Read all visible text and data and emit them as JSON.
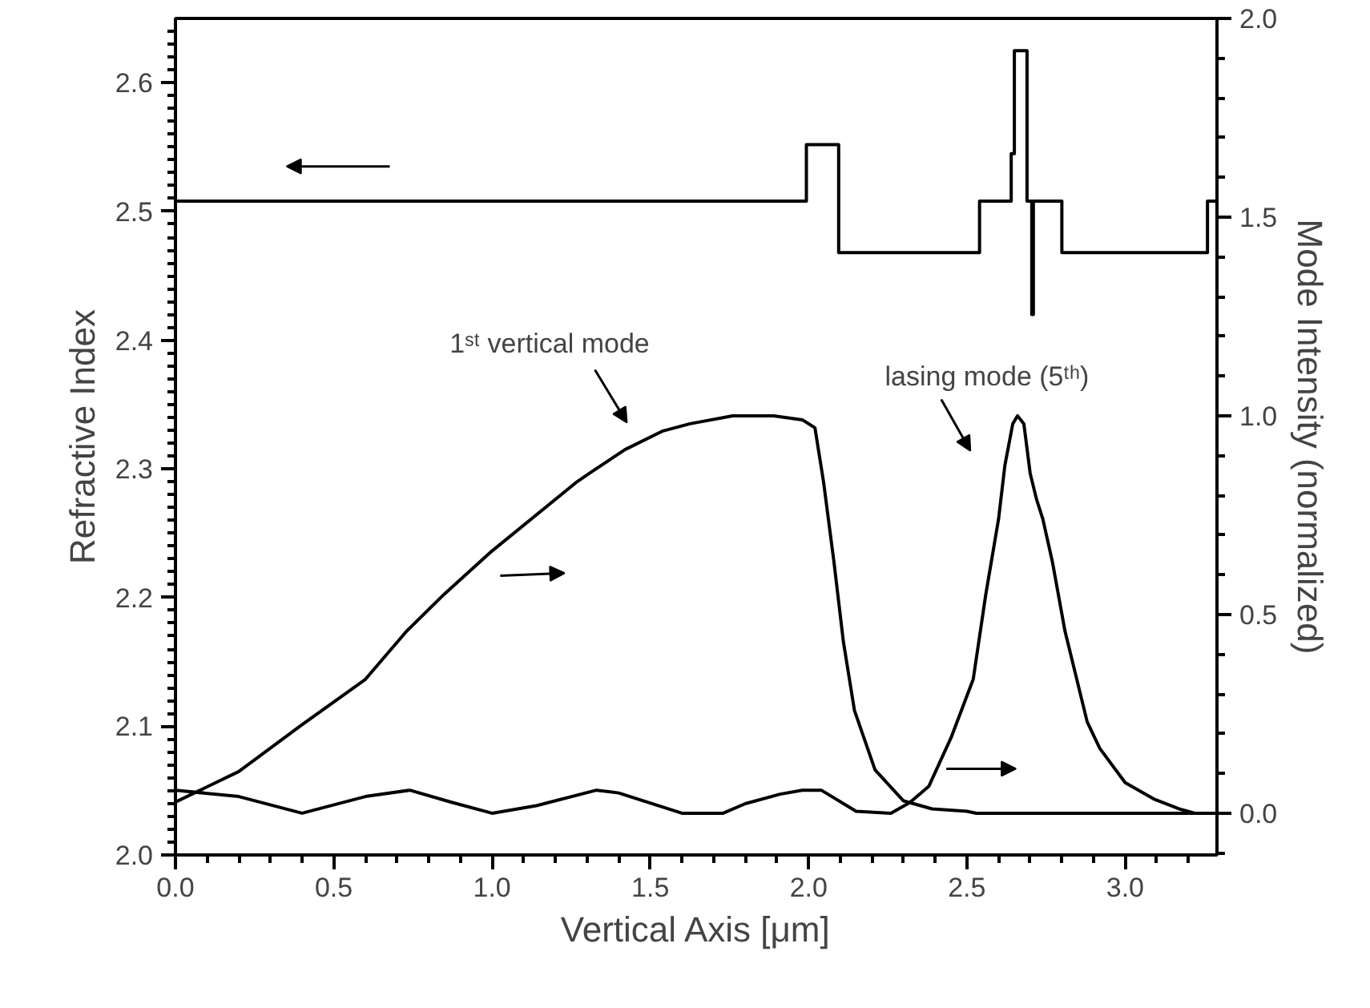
{
  "chart_data": {
    "type": "line",
    "xlabel": "Vertical Axis [μm]",
    "ylabel": "Refractive Index",
    "y2label": "Mode Intensity (normalized)",
    "xlim": [
      0,
      3.29
    ],
    "xticks": [
      {
        "value": 0,
        "label": "0.0"
      },
      0.5,
      {
        "value": 1,
        "label": "1.0"
      },
      1.5,
      {
        "value": 2,
        "label": "2.0"
      },
      2.5,
      {
        "value": 3,
        "label": "3.0"
      }
    ],
    "ylim": [
      2.0,
      2.65
    ],
    "yticks": [
      {
        "value": 2.0,
        "label": "2.0"
      },
      2.1,
      2.2,
      2.3,
      2.4,
      2.5,
      2.6
    ],
    "y2lim": [
      -0.105,
      2.0
    ],
    "y2ticks": [
      {
        "value": 0,
        "label": "0.0"
      },
      0.5,
      {
        "value": 1,
        "label": "1.0"
      },
      1.5,
      {
        "value": 2,
        "label": "2.0"
      }
    ],
    "grid": false,
    "marker": "none",
    "line_style": "solid",
    "series": [
      {
        "color": "#000000",
        "x": [
          0,
          1.993,
          1.993,
          2.095,
          2.095,
          2.54,
          2.54,
          2.64,
          2.64,
          2.65,
          2.65,
          2.69,
          2.69,
          2.705,
          2.705,
          2.71,
          2.71,
          2.8,
          2.8,
          3.26,
          3.26,
          3.29
        ],
        "values": [
          2.508,
          2.508,
          2.552,
          2.552,
          2.468,
          2.468,
          2.508,
          2.508,
          2.545,
          2.545,
          2.625,
          2.625,
          2.508,
          2.508,
          2.42,
          2.42,
          2.508,
          2.508,
          2.468,
          2.468,
          2.508,
          2.508
        ]
      },
      {
        "color": "#000000",
        "axis": "y2",
        "x": [
          0,
          0.2,
          0.4,
          0.6,
          0.73,
          0.85,
          1.0,
          1.27,
          1.32,
          1.42,
          1.54,
          1.625,
          1.76,
          1.89,
          1.98,
          2.02,
          2.047,
          2.08,
          2.11,
          2.145,
          2.21,
          2.3,
          2.39,
          2.5,
          2.53,
          3.29
        ],
        "values": [
          0.028,
          0.105,
          0.223,
          0.337,
          0.458,
          0.552,
          0.66,
          0.835,
          0.862,
          0.915,
          0.962,
          0.98,
          1.0,
          1.0,
          0.99,
          0.97,
          0.835,
          0.633,
          0.431,
          0.258,
          0.109,
          0.031,
          0.011,
          0.005,
          0,
          0
        ]
      },
      {
        "color": "#000000",
        "axis": "y2",
        "x": [
          0,
          0.2,
          0.4,
          0.6,
          0.74,
          0.87,
          1.0,
          1.14,
          1.33,
          1.4,
          1.6,
          1.73,
          1.8,
          1.91,
          1.98,
          2.04,
          2.15,
          2.26,
          2.32,
          2.38,
          2.45,
          2.52,
          2.56,
          2.6,
          2.62,
          2.645,
          2.66,
          2.68,
          2.7,
          2.72,
          2.74,
          2.77,
          2.81,
          2.88,
          2.92,
          3.0,
          3.09,
          3.17,
          3.22,
          3.29
        ],
        "values": [
          0.058,
          0.042,
          0,
          0.042,
          0.058,
          0.028,
          0,
          0.019,
          0.058,
          0.051,
          0,
          0,
          0.024,
          0.048,
          0.058,
          0.058,
          0.005,
          0,
          0.027,
          0.068,
          0.19,
          0.337,
          0.552,
          0.74,
          0.875,
          0.98,
          1.0,
          0.98,
          0.855,
          0.79,
          0.74,
          0.633,
          0.458,
          0.23,
          0.163,
          0.077,
          0.036,
          0.011,
          0,
          0
        ]
      }
    ],
    "annotations": [
      "1ˢᵗ vertical mode",
      "lasing mode (5ᵗʰ)"
    ]
  }
}
